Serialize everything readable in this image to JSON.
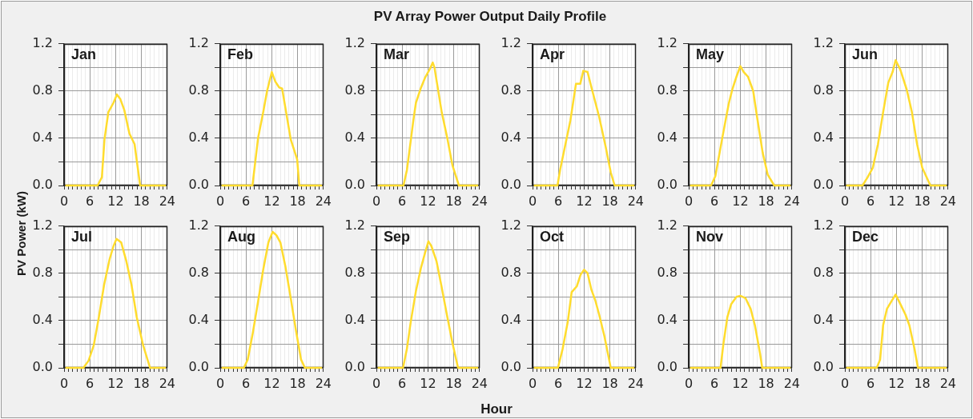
{
  "chart_data": [
    {
      "type": "other",
      "title": "PV Array Power Output Daily Profile",
      "xlabel": "Hour",
      "ylabel": "PV Power (kW)"
    },
    {
      "type": "line",
      "title": "Jan",
      "x": [
        0.5,
        7.8,
        8.8,
        9.4,
        10.3,
        11.5,
        12.3,
        13.1,
        14,
        15.2,
        16.4,
        17.7,
        23.5
      ],
      "values": [
        0,
        0,
        0.07,
        0.39,
        0.62,
        0.7,
        0.77,
        0.73,
        0.64,
        0.44,
        0.35,
        0,
        0
      ],
      "color": "#ffdc2e",
      "xlim": [
        0,
        24
      ],
      "ylim": [
        0,
        1.2
      ],
      "xticks": [
        0,
        {
          "value": 1,
          "label": null
        },
        {
          "value": 2,
          "label": null
        },
        {
          "value": 3,
          "label": null
        },
        {
          "value": 4,
          "label": null
        },
        {
          "value": 5,
          "label": null
        },
        6,
        {
          "value": 7,
          "label": null
        },
        {
          "value": 8,
          "label": null
        },
        {
          "value": 9,
          "label": null
        },
        {
          "value": 10,
          "label": null
        },
        {
          "value": 11,
          "label": null
        },
        12,
        {
          "value": 13,
          "label": null
        },
        {
          "value": 14,
          "label": null
        },
        {
          "value": 15,
          "label": null
        },
        {
          "value": 16,
          "label": null
        },
        {
          "value": 17,
          "label": null
        },
        18,
        {
          "value": 19,
          "label": null
        },
        {
          "value": 20,
          "label": null
        },
        {
          "value": 21,
          "label": null
        },
        {
          "value": 22,
          "label": null
        },
        {
          "value": 23,
          "label": null
        },
        24
      ],
      "yticks": [
        {
          "value": 0,
          "label": "0.0"
        },
        {
          "value": 0.2,
          "label": null
        },
        0.4,
        {
          "value": 0.6,
          "label": null
        },
        0.8,
        {
          "value": 1,
          "label": null
        },
        1.2
      ],
      "grid": true
    },
    {
      "type": "line",
      "title": "Feb",
      "x": [
        0.5,
        7.5,
        8.8,
        10,
        10.9,
        12,
        12.8,
        13.7,
        14.4,
        16.4,
        17.9,
        18.4,
        23.5
      ],
      "values": [
        0,
        0,
        0.4,
        0.62,
        0.8,
        0.96,
        0.88,
        0.83,
        0.82,
        0.39,
        0.22,
        0,
        0
      ],
      "color": "#ffdc2e",
      "xlim": [
        0,
        24
      ],
      "ylim": [
        0,
        1.2
      ],
      "xticks": [
        0,
        {
          "value": 1,
          "label": null
        },
        {
          "value": 2,
          "label": null
        },
        {
          "value": 3,
          "label": null
        },
        {
          "value": 4,
          "label": null
        },
        {
          "value": 5,
          "label": null
        },
        6,
        {
          "value": 7,
          "label": null
        },
        {
          "value": 8,
          "label": null
        },
        {
          "value": 9,
          "label": null
        },
        {
          "value": 10,
          "label": null
        },
        {
          "value": 11,
          "label": null
        },
        12,
        {
          "value": 13,
          "label": null
        },
        {
          "value": 14,
          "label": null
        },
        {
          "value": 15,
          "label": null
        },
        {
          "value": 16,
          "label": null
        },
        {
          "value": 17,
          "label": null
        },
        18,
        {
          "value": 19,
          "label": null
        },
        {
          "value": 20,
          "label": null
        },
        {
          "value": 21,
          "label": null
        },
        {
          "value": 22,
          "label": null
        },
        {
          "value": 23,
          "label": null
        },
        24
      ],
      "yticks": [
        {
          "value": 0,
          "label": "0.0"
        },
        {
          "value": 0.2,
          "label": null
        },
        0.4,
        {
          "value": 0.6,
          "label": null
        },
        0.8,
        {
          "value": 1,
          "label": null
        },
        1.2
      ],
      "grid": true
    },
    {
      "type": "line",
      "title": "Mar",
      "x": [
        0.5,
        6.3,
        7.1,
        8.6,
        9.2,
        10.3,
        11.3,
        12.5,
        13.1,
        13.5,
        15.2,
        16.5,
        17.7,
        19.2,
        23.5
      ],
      "values": [
        0,
        0,
        0.13,
        0.55,
        0.7,
        0.82,
        0.91,
        0.99,
        1.04,
        1,
        0.62,
        0.4,
        0.17,
        0,
        0
      ],
      "color": "#ffdc2e",
      "xlim": [
        0,
        24
      ],
      "ylim": [
        0,
        1.2
      ],
      "xticks": [
        0,
        {
          "value": 1,
          "label": null
        },
        {
          "value": 2,
          "label": null
        },
        {
          "value": 3,
          "label": null
        },
        {
          "value": 4,
          "label": null
        },
        {
          "value": 5,
          "label": null
        },
        6,
        {
          "value": 7,
          "label": null
        },
        {
          "value": 8,
          "label": null
        },
        {
          "value": 9,
          "label": null
        },
        {
          "value": 10,
          "label": null
        },
        {
          "value": 11,
          "label": null
        },
        12,
        {
          "value": 13,
          "label": null
        },
        {
          "value": 14,
          "label": null
        },
        {
          "value": 15,
          "label": null
        },
        {
          "value": 16,
          "label": null
        },
        {
          "value": 17,
          "label": null
        },
        18,
        {
          "value": 19,
          "label": null
        },
        {
          "value": 20,
          "label": null
        },
        {
          "value": 21,
          "label": null
        },
        {
          "value": 22,
          "label": null
        },
        {
          "value": 23,
          "label": null
        },
        24
      ],
      "yticks": [
        {
          "value": 0,
          "label": "0.0"
        },
        {
          "value": 0.2,
          "label": null
        },
        0.4,
        {
          "value": 0.6,
          "label": null
        },
        0.8,
        {
          "value": 1,
          "label": null
        },
        1.2
      ],
      "grid": true
    },
    {
      "type": "line",
      "title": "Apr",
      "x": [
        0.5,
        5.8,
        6.4,
        8.8,
        10.1,
        11.1,
        11.8,
        12.8,
        13.7,
        15.5,
        17,
        18.2,
        19.1,
        23.5
      ],
      "values": [
        0,
        0,
        0.13,
        0.55,
        0.86,
        0.86,
        0.97,
        0.96,
        0.83,
        0.58,
        0.33,
        0.11,
        0,
        0
      ],
      "color": "#ffdc2e",
      "xlim": [
        0,
        24
      ],
      "ylim": [
        0,
        1.2
      ],
      "xticks": [
        0,
        {
          "value": 1,
          "label": null
        },
        {
          "value": 2,
          "label": null
        },
        {
          "value": 3,
          "label": null
        },
        {
          "value": 4,
          "label": null
        },
        {
          "value": 5,
          "label": null
        },
        6,
        {
          "value": 7,
          "label": null
        },
        {
          "value": 8,
          "label": null
        },
        {
          "value": 9,
          "label": null
        },
        {
          "value": 10,
          "label": null
        },
        {
          "value": 11,
          "label": null
        },
        12,
        {
          "value": 13,
          "label": null
        },
        {
          "value": 14,
          "label": null
        },
        {
          "value": 15,
          "label": null
        },
        {
          "value": 16,
          "label": null
        },
        {
          "value": 17,
          "label": null
        },
        18,
        {
          "value": 19,
          "label": null
        },
        {
          "value": 20,
          "label": null
        },
        {
          "value": 21,
          "label": null
        },
        {
          "value": 22,
          "label": null
        },
        {
          "value": 23,
          "label": null
        },
        24
      ],
      "yticks": [
        {
          "value": 0,
          "label": "0.0"
        },
        {
          "value": 0.2,
          "label": null
        },
        0.4,
        {
          "value": 0.6,
          "label": null
        },
        0.8,
        {
          "value": 1,
          "label": null
        },
        1.2
      ],
      "grid": true
    },
    {
      "type": "line",
      "title": "May",
      "x": [
        0.5,
        5.2,
        6.2,
        7.8,
        9.3,
        10.2,
        11.1,
        12,
        12.8,
        13.8,
        15,
        15.9,
        17.2,
        18.4,
        19.9,
        23.5
      ],
      "values": [
        0,
        0,
        0.08,
        0.4,
        0.69,
        0.82,
        0.92,
        1.01,
        0.96,
        0.92,
        0.8,
        0.58,
        0.28,
        0.09,
        0,
        0
      ],
      "color": "#ffdc2e",
      "xlim": [
        0,
        24
      ],
      "ylim": [
        0,
        1.2
      ],
      "xticks": [
        0,
        {
          "value": 1,
          "label": null
        },
        {
          "value": 2,
          "label": null
        },
        {
          "value": 3,
          "label": null
        },
        {
          "value": 4,
          "label": null
        },
        {
          "value": 5,
          "label": null
        },
        6,
        {
          "value": 7,
          "label": null
        },
        {
          "value": 8,
          "label": null
        },
        {
          "value": 9,
          "label": null
        },
        {
          "value": 10,
          "label": null
        },
        {
          "value": 11,
          "label": null
        },
        12,
        {
          "value": 13,
          "label": null
        },
        {
          "value": 14,
          "label": null
        },
        {
          "value": 15,
          "label": null
        },
        {
          "value": 16,
          "label": null
        },
        {
          "value": 17,
          "label": null
        },
        18,
        {
          "value": 19,
          "label": null
        },
        {
          "value": 20,
          "label": null
        },
        {
          "value": 21,
          "label": null
        },
        {
          "value": 22,
          "label": null
        },
        {
          "value": 23,
          "label": null
        },
        24
      ],
      "yticks": [
        {
          "value": 0,
          "label": "0.0"
        },
        {
          "value": 0.2,
          "label": null
        },
        0.4,
        {
          "value": 0.6,
          "label": null
        },
        0.8,
        {
          "value": 1,
          "label": null
        },
        1.2
      ],
      "grid": true
    },
    {
      "type": "line",
      "title": "Jun",
      "x": [
        0.5,
        4.1,
        5.3,
        6.5,
        7.7,
        8.9,
        10.1,
        11.1,
        11.8,
        12.9,
        14.4,
        15.6,
        16.8,
        18,
        19.9,
        23.5
      ],
      "values": [
        0,
        0,
        0.07,
        0.15,
        0.35,
        0.62,
        0.87,
        0.96,
        1.06,
        0.98,
        0.81,
        0.62,
        0.35,
        0.15,
        0,
        0
      ],
      "color": "#ffdc2e",
      "xlim": [
        0,
        24
      ],
      "ylim": [
        0,
        1.2
      ],
      "xticks": [
        0,
        {
          "value": 1,
          "label": null
        },
        {
          "value": 2,
          "label": null
        },
        {
          "value": 3,
          "label": null
        },
        {
          "value": 4,
          "label": null
        },
        {
          "value": 5,
          "label": null
        },
        6,
        {
          "value": 7,
          "label": null
        },
        {
          "value": 8,
          "label": null
        },
        {
          "value": 9,
          "label": null
        },
        {
          "value": 10,
          "label": null
        },
        {
          "value": 11,
          "label": null
        },
        12,
        {
          "value": 13,
          "label": null
        },
        {
          "value": 14,
          "label": null
        },
        {
          "value": 15,
          "label": null
        },
        {
          "value": 16,
          "label": null
        },
        {
          "value": 17,
          "label": null
        },
        18,
        {
          "value": 19,
          "label": null
        },
        {
          "value": 20,
          "label": null
        },
        {
          "value": 21,
          "label": null
        },
        {
          "value": 22,
          "label": null
        },
        {
          "value": 23,
          "label": null
        },
        24
      ],
      "yticks": [
        {
          "value": 0,
          "label": "0.0"
        },
        {
          "value": 0.2,
          "label": null
        },
        0.4,
        {
          "value": 0.6,
          "label": null
        },
        0.8,
        {
          "value": 1,
          "label": null
        },
        1.2
      ],
      "grid": true
    },
    {
      "type": "line",
      "title": "Jul",
      "x": [
        0.5,
        4.5,
        5.7,
        6.9,
        8.1,
        9.3,
        10.6,
        11.5,
        12.2,
        13.3,
        14.5,
        15.7,
        16.9,
        18.4,
        20,
        23.5
      ],
      "values": [
        0,
        0,
        0.06,
        0.19,
        0.43,
        0.7,
        0.92,
        1.03,
        1.09,
        1.06,
        0.9,
        0.7,
        0.43,
        0.19,
        0,
        0
      ],
      "color": "#ffdc2e",
      "xlim": [
        0,
        24
      ],
      "ylim": [
        0,
        1.2
      ],
      "xticks": [
        0,
        {
          "value": 1,
          "label": null
        },
        {
          "value": 2,
          "label": null
        },
        {
          "value": 3,
          "label": null
        },
        {
          "value": 4,
          "label": null
        },
        {
          "value": 5,
          "label": null
        },
        6,
        {
          "value": 7,
          "label": null
        },
        {
          "value": 8,
          "label": null
        },
        {
          "value": 9,
          "label": null
        },
        {
          "value": 10,
          "label": null
        },
        {
          "value": 11,
          "label": null
        },
        12,
        {
          "value": 13,
          "label": null
        },
        {
          "value": 14,
          "label": null
        },
        {
          "value": 15,
          "label": null
        },
        {
          "value": 16,
          "label": null
        },
        {
          "value": 17,
          "label": null
        },
        18,
        {
          "value": 19,
          "label": null
        },
        {
          "value": 20,
          "label": null
        },
        {
          "value": 21,
          "label": null
        },
        {
          "value": 22,
          "label": null
        },
        {
          "value": 23,
          "label": null
        },
        24
      ],
      "yticks": [
        {
          "value": 0,
          "label": "0.0"
        },
        {
          "value": 0.2,
          "label": null
        },
        0.4,
        {
          "value": 0.6,
          "label": null
        },
        0.8,
        {
          "value": 1,
          "label": null
        },
        1.2
      ],
      "grid": true
    },
    {
      "type": "line",
      "title": "Aug",
      "x": [
        0.5,
        5.5,
        6.4,
        7.6,
        8.8,
        10,
        11.2,
        12.2,
        13.1,
        14,
        15.2,
        16.4,
        17.6,
        18.8,
        19.7,
        23.5
      ],
      "values": [
        0,
        0,
        0.07,
        0.3,
        0.56,
        0.83,
        1.06,
        1.15,
        1.12,
        1.06,
        0.85,
        0.59,
        0.32,
        0.07,
        0,
        0
      ],
      "color": "#ffdc2e",
      "xlim": [
        0,
        24
      ],
      "ylim": [
        0,
        1.2
      ],
      "xticks": [
        0,
        {
          "value": 1,
          "label": null
        },
        {
          "value": 2,
          "label": null
        },
        {
          "value": 3,
          "label": null
        },
        {
          "value": 4,
          "label": null
        },
        {
          "value": 5,
          "label": null
        },
        6,
        {
          "value": 7,
          "label": null
        },
        {
          "value": 8,
          "label": null
        },
        {
          "value": 9,
          "label": null
        },
        {
          "value": 10,
          "label": null
        },
        {
          "value": 11,
          "label": null
        },
        12,
        {
          "value": 13,
          "label": null
        },
        {
          "value": 14,
          "label": null
        },
        {
          "value": 15,
          "label": null
        },
        {
          "value": 16,
          "label": null
        },
        {
          "value": 17,
          "label": null
        },
        18,
        {
          "value": 19,
          "label": null
        },
        {
          "value": 20,
          "label": null
        },
        {
          "value": 21,
          "label": null
        },
        {
          "value": 22,
          "label": null
        },
        {
          "value": 23,
          "label": null
        },
        24
      ],
      "yticks": [
        {
          "value": 0,
          "label": "0.0"
        },
        {
          "value": 0.2,
          "label": null
        },
        0.4,
        {
          "value": 0.6,
          "label": null
        },
        0.8,
        {
          "value": 1,
          "label": null
        },
        1.2
      ],
      "grid": true
    },
    {
      "type": "line",
      "title": "Sep",
      "x": [
        0.5,
        6.2,
        7.1,
        8,
        9.2,
        10.4,
        11.3,
        12.1,
        12.8,
        14,
        15.2,
        16.4,
        17.7,
        19,
        23.5
      ],
      "values": [
        0,
        0,
        0.16,
        0.39,
        0.65,
        0.85,
        0.97,
        1.07,
        1.03,
        0.9,
        0.68,
        0.45,
        0.21,
        0,
        0
      ],
      "color": "#ffdc2e",
      "xlim": [
        0,
        24
      ],
      "ylim": [
        0,
        1.2
      ],
      "xticks": [
        0,
        {
          "value": 1,
          "label": null
        },
        {
          "value": 2,
          "label": null
        },
        {
          "value": 3,
          "label": null
        },
        {
          "value": 4,
          "label": null
        },
        {
          "value": 5,
          "label": null
        },
        6,
        {
          "value": 7,
          "label": null
        },
        {
          "value": 8,
          "label": null
        },
        {
          "value": 9,
          "label": null
        },
        {
          "value": 10,
          "label": null
        },
        {
          "value": 11,
          "label": null
        },
        12,
        {
          "value": 13,
          "label": null
        },
        {
          "value": 14,
          "label": null
        },
        {
          "value": 15,
          "label": null
        },
        {
          "value": 16,
          "label": null
        },
        {
          "value": 17,
          "label": null
        },
        18,
        {
          "value": 19,
          "label": null
        },
        {
          "value": 20,
          "label": null
        },
        {
          "value": 21,
          "label": null
        },
        {
          "value": 22,
          "label": null
        },
        {
          "value": 23,
          "label": null
        },
        24
      ],
      "yticks": [
        {
          "value": 0,
          "label": "0.0"
        },
        {
          "value": 0.2,
          "label": null
        },
        0.4,
        {
          "value": 0.6,
          "label": null
        },
        0.8,
        {
          "value": 1,
          "label": null
        },
        1.2
      ],
      "grid": true
    },
    {
      "type": "line",
      "title": "Oct",
      "x": [
        0.5,
        5.9,
        7,
        8.2,
        9.1,
        10.3,
        11.2,
        12,
        12.8,
        13.7,
        14.6,
        15.5,
        16.7,
        18.2,
        23.5
      ],
      "values": [
        0,
        0,
        0.16,
        0.39,
        0.64,
        0.69,
        0.79,
        0.83,
        0.8,
        0.66,
        0.57,
        0.45,
        0.27,
        0,
        0
      ],
      "color": "#ffdc2e",
      "xlim": [
        0,
        24
      ],
      "ylim": [
        0,
        1.2
      ],
      "xticks": [
        0,
        {
          "value": 1,
          "label": null
        },
        {
          "value": 2,
          "label": null
        },
        {
          "value": 3,
          "label": null
        },
        {
          "value": 4,
          "label": null
        },
        {
          "value": 5,
          "label": null
        },
        6,
        {
          "value": 7,
          "label": null
        },
        {
          "value": 8,
          "label": null
        },
        {
          "value": 9,
          "label": null
        },
        {
          "value": 10,
          "label": null
        },
        {
          "value": 11,
          "label": null
        },
        12,
        {
          "value": 13,
          "label": null
        },
        {
          "value": 14,
          "label": null
        },
        {
          "value": 15,
          "label": null
        },
        {
          "value": 16,
          "label": null
        },
        {
          "value": 17,
          "label": null
        },
        18,
        {
          "value": 19,
          "label": null
        },
        {
          "value": 20,
          "label": null
        },
        {
          "value": 21,
          "label": null
        },
        {
          "value": 22,
          "label": null
        },
        {
          "value": 23,
          "label": null
        },
        24
      ],
      "yticks": [
        {
          "value": 0,
          "label": "0.0"
        },
        {
          "value": 0.2,
          "label": null
        },
        0.4,
        {
          "value": 0.6,
          "label": null
        },
        0.8,
        {
          "value": 1,
          "label": null
        },
        1.2
      ],
      "grid": true
    },
    {
      "type": "line",
      "title": "Nov",
      "x": [
        0.5,
        7.4,
        8.1,
        9,
        9.9,
        11.1,
        12,
        13.2,
        14.4,
        15.4,
        16.6,
        17.1,
        23.5
      ],
      "values": [
        0,
        0,
        0.21,
        0.43,
        0.54,
        0.6,
        0.61,
        0.59,
        0.5,
        0.36,
        0.12,
        0,
        0
      ],
      "color": "#ffdc2e",
      "xlim": [
        0,
        24
      ],
      "ylim": [
        0,
        1.2
      ],
      "xticks": [
        0,
        {
          "value": 1,
          "label": null
        },
        {
          "value": 2,
          "label": null
        },
        {
          "value": 3,
          "label": null
        },
        {
          "value": 4,
          "label": null
        },
        {
          "value": 5,
          "label": null
        },
        6,
        {
          "value": 7,
          "label": null
        },
        {
          "value": 8,
          "label": null
        },
        {
          "value": 9,
          "label": null
        },
        {
          "value": 10,
          "label": null
        },
        {
          "value": 11,
          "label": null
        },
        12,
        {
          "value": 13,
          "label": null
        },
        {
          "value": 14,
          "label": null
        },
        {
          "value": 15,
          "label": null
        },
        {
          "value": 16,
          "label": null
        },
        {
          "value": 17,
          "label": null
        },
        18,
        {
          "value": 19,
          "label": null
        },
        {
          "value": 20,
          "label": null
        },
        {
          "value": 21,
          "label": null
        },
        {
          "value": 22,
          "label": null
        },
        {
          "value": 23,
          "label": null
        },
        24
      ],
      "yticks": [
        {
          "value": 0,
          "label": "0.0"
        },
        {
          "value": 0.2,
          "label": null
        },
        0.4,
        {
          "value": 0.6,
          "label": null
        },
        0.8,
        {
          "value": 1,
          "label": null
        },
        1.2
      ],
      "grid": true
    },
    {
      "type": "line",
      "title": "Dec",
      "x": [
        0.5,
        7.4,
        8.2,
        8.9,
        9.8,
        10.8,
        11.8,
        12.9,
        14.1,
        15,
        16.2,
        17,
        23.5
      ],
      "values": [
        0,
        0,
        0.07,
        0.36,
        0.5,
        0.56,
        0.62,
        0.54,
        0.45,
        0.36,
        0.16,
        0,
        0
      ],
      "color": "#ffdc2e",
      "xlim": [
        0,
        24
      ],
      "ylim": [
        0,
        1.2
      ],
      "xticks": [
        0,
        {
          "value": 1,
          "label": null
        },
        {
          "value": 2,
          "label": null
        },
        {
          "value": 3,
          "label": null
        },
        {
          "value": 4,
          "label": null
        },
        {
          "value": 5,
          "label": null
        },
        6,
        {
          "value": 7,
          "label": null
        },
        {
          "value": 8,
          "label": null
        },
        {
          "value": 9,
          "label": null
        },
        {
          "value": 10,
          "label": null
        },
        {
          "value": 11,
          "label": null
        },
        12,
        {
          "value": 13,
          "label": null
        },
        {
          "value": 14,
          "label": null
        },
        {
          "value": 15,
          "label": null
        },
        {
          "value": 16,
          "label": null
        },
        {
          "value": 17,
          "label": null
        },
        18,
        {
          "value": 19,
          "label": null
        },
        {
          "value": 20,
          "label": null
        },
        {
          "value": 21,
          "label": null
        },
        {
          "value": 22,
          "label": null
        },
        {
          "value": 23,
          "label": null
        },
        24
      ],
      "yticks": [
        {
          "value": 0,
          "label": "0.0"
        },
        {
          "value": 0.2,
          "label": null
        },
        0.4,
        {
          "value": 0.6,
          "label": null
        },
        0.8,
        {
          "value": 1,
          "label": null
        },
        1.2
      ],
      "grid": true
    }
  ]
}
